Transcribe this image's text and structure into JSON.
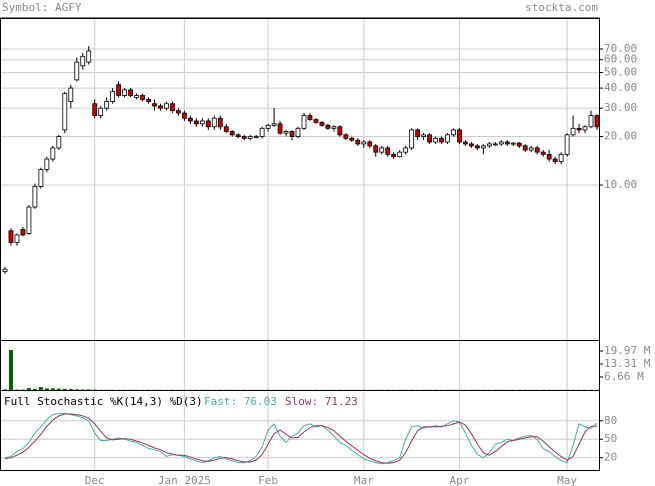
{
  "chart_data": [
    {
      "type": "candlestick",
      "title": "Symbol: AGFY",
      "source": "stockta.com",
      "categories": [
        null,
        null,
        null,
        null,
        null,
        null,
        null,
        null,
        null,
        null,
        null,
        null,
        null,
        null,
        null,
        "Dec",
        null,
        null,
        null,
        null,
        null,
        null,
        null,
        null,
        null,
        null,
        null,
        null,
        null,
        null,
        "Jan 2025",
        null,
        null,
        null,
        null,
        null,
        null,
        null,
        null,
        null,
        null,
        null,
        null,
        null,
        "Feb",
        null,
        null,
        null,
        null,
        null,
        null,
        null,
        null,
        null,
        null,
        null,
        null,
        null,
        null,
        null,
        "Mar",
        null,
        null,
        null,
        null,
        null,
        null,
        null,
        null,
        null,
        null,
        null,
        null,
        null,
        null,
        null,
        "Apr",
        null,
        null,
        null,
        null,
        null,
        null,
        null,
        null,
        null,
        null,
        null,
        null,
        null,
        null,
        null,
        null,
        null,
        "May",
        null,
        null,
        null,
        null,
        null
      ],
      "open": [
        2.9,
        5.2,
        4.4,
        5.3,
        5.0,
        7.3,
        9.8,
        12.5,
        14.5,
        17,
        22,
        33,
        45,
        55,
        58,
        32,
        27,
        30,
        33,
        42,
        36,
        39,
        35,
        36,
        34,
        32,
        31,
        30,
        32,
        29,
        28,
        26,
        25,
        24,
        25,
        23,
        26,
        23,
        21.5,
        20.5,
        20,
        19.5,
        20,
        20,
        22.5,
        23.5,
        24,
        21,
        21.5,
        20,
        22.5,
        27,
        25.5,
        24.5,
        23.5,
        22.5,
        23,
        20.5,
        19.5,
        19,
        18,
        18.5,
        17.5,
        16,
        17,
        15.5,
        15,
        16,
        17,
        22,
        20,
        20.5,
        18.5,
        19.5,
        18.5,
        20.5,
        22,
        18.5,
        18,
        17.5,
        17,
        17.5,
        18,
        18,
        18.5,
        18,
        18.2,
        17.5,
        16.5,
        17,
        16,
        15.5,
        14.5,
        14,
        15.5,
        20.5,
        22.5,
        22,
        23,
        27
      ],
      "high": [
        3.1,
        5.4,
        5.0,
        5.5,
        7.5,
        10.2,
        12.8,
        15,
        17.5,
        20.5,
        38,
        42,
        62,
        66,
        73,
        34,
        31,
        35,
        40,
        44,
        40,
        40,
        37,
        37,
        35,
        34,
        32,
        33,
        33,
        30,
        29,
        27,
        26,
        26,
        26,
        27,
        27,
        24,
        22,
        21,
        20.5,
        20.5,
        20.5,
        23,
        24,
        30,
        25,
        22,
        22,
        23,
        28,
        28,
        26,
        25,
        24,
        23.5,
        23.5,
        21,
        20,
        19.5,
        19,
        19,
        18,
        17.5,
        17.5,
        16,
        16.5,
        17.5,
        22.5,
        22.5,
        21,
        21,
        20,
        20,
        21,
        22.5,
        22.5,
        19,
        18.5,
        18,
        18,
        18.5,
        18.5,
        19,
        19,
        18.5,
        18.5,
        18,
        17.5,
        17.5,
        16.5,
        16.5,
        15,
        16,
        21,
        27,
        24,
        23.5,
        29,
        27.5
      ],
      "low": [
        2.8,
        4.2,
        4.2,
        4.8,
        4.9,
        7.1,
        9.5,
        12,
        14,
        16.5,
        21,
        30,
        44,
        52,
        56,
        26,
        26,
        29,
        32,
        35,
        35,
        35,
        34,
        33,
        32,
        29,
        29,
        29,
        28,
        27,
        25,
        24,
        23,
        23,
        22,
        22,
        22,
        21,
        20,
        19.5,
        19,
        19,
        19.5,
        19.5,
        21.5,
        23,
        20.5,
        20,
        19,
        19.5,
        22,
        25,
        24,
        23,
        22,
        21.5,
        20,
        19,
        18.5,
        17.5,
        17,
        17,
        15,
        15.5,
        15,
        14.5,
        14.8,
        15.5,
        16.5,
        19,
        19,
        18,
        18,
        18,
        18,
        20,
        18,
        17.5,
        17,
        16.5,
        15.5,
        17,
        17.5,
        17.5,
        17.5,
        17.5,
        17,
        16,
        16,
        15.5,
        15,
        14,
        13.5,
        13.5,
        15,
        20,
        21,
        21,
        22.5,
        22
      ],
      "close": [
        3.0,
        4.4,
        4.9,
        4.9,
        7.3,
        9.8,
        12.5,
        14.5,
        17,
        20,
        37,
        40,
        58,
        63,
        68,
        27,
        30,
        33,
        38,
        36,
        39,
        36,
        36,
        34,
        33,
        31,
        30,
        32,
        29,
        28,
        26,
        25,
        24,
        25,
        23,
        26,
        23,
        21.5,
        20.5,
        20,
        19.5,
        20,
        20,
        22.5,
        23.5,
        24,
        21,
        21.5,
        20,
        22.5,
        27,
        25.5,
        24.5,
        23.5,
        22.5,
        23,
        20.5,
        19.5,
        19,
        18,
        18.5,
        17.5,
        16,
        17,
        15.5,
        15,
        16,
        17,
        22,
        20,
        20.5,
        18.5,
        19.5,
        18.5,
        20.5,
        22,
        18.5,
        18,
        17.5,
        17,
        17.5,
        18,
        18,
        18.5,
        18,
        18.2,
        17.5,
        16.5,
        17,
        16,
        15.5,
        14.5,
        14,
        15.5,
        20.5,
        22.5,
        22,
        23,
        27,
        23
      ],
      "up_color": "#ffffff",
      "down_color": "#cc0000",
      "log_scale": true,
      "grid": true,
      "ylim": [
        1.09,
        109
      ],
      "yticks": [
        {
          "value": 10,
          "label": "10.00"
        },
        {
          "value": 20,
          "label": "20.00"
        },
        {
          "value": 30,
          "label": "30.00"
        },
        {
          "value": 40,
          "label": "40.00"
        },
        {
          "value": 50,
          "label": "50.00"
        },
        {
          "value": 60,
          "label": "60.00"
        },
        {
          "value": 70,
          "label": "70.00"
        }
      ]
    },
    {
      "type": "bar",
      "color": "#006600",
      "grid": false,
      "values": [
        0.3,
        20.5,
        0.2,
        0.2,
        1.0,
        0.6,
        1.5,
        0.8,
        0.9,
        0.7,
        0.6,
        0.5,
        0.4,
        0.3,
        0.3,
        0.2,
        0.1,
        0.1,
        0.1,
        0.1,
        0.1,
        0.1,
        0.1,
        0.1,
        0.1,
        0.1,
        0.1,
        0.1,
        0.1,
        0.1,
        0.1,
        0.1,
        0.1,
        0.1,
        0.1,
        0.1,
        0.1,
        0.1,
        0.1,
        0.1,
        0.1,
        0.1,
        0.1,
        0.1,
        0.1,
        0.1,
        0.1,
        0.1,
        0.1,
        0.1,
        0.1,
        0.1,
        0.1,
        0.1,
        0.1,
        0.1,
        0.1,
        0.1,
        0.1,
        0.1,
        0.1,
        0.1,
        0.1,
        0.1,
        0.1,
        0.1,
        0.1,
        0.1,
        0.1,
        0.1,
        0.1,
        0.1,
        0.1,
        0.1,
        0.1,
        0.1,
        0.1,
        0.1,
        0.1,
        0.1,
        0.1,
        0.1,
        0.1,
        0.1,
        0.1,
        0.1,
        0.1,
        0.1,
        0.1,
        0.1,
        0.1,
        0.1,
        0.1,
        0.1,
        0.1,
        0.1,
        0.1,
        0.1,
        0.1,
        0.1
      ],
      "ylim": [
        0,
        25.6
      ],
      "yticks": [
        {
          "value": 6.66,
          "label": "6.66 M"
        },
        {
          "value": 13.31,
          "label": "13.31 M"
        },
        {
          "value": 19.97,
          "label": "19.97 M"
        }
      ]
    },
    {
      "type": "line",
      "title": "Full Stochastic %K(14,3) %D(3)",
      "grid": true,
      "series": [
        {
          "name": "Fast: 76.03",
          "color": "#44aaaa",
          "values": [
            20,
            22,
            30,
            35,
            45,
            60,
            70,
            82,
            90,
            92,
            92,
            90,
            88,
            85,
            80,
            60,
            48,
            48,
            50,
            52,
            50,
            47,
            45,
            40,
            35,
            33,
            30,
            22,
            25,
            24,
            22,
            18,
            15,
            12,
            15,
            20,
            22,
            18,
            15,
            12,
            12,
            15,
            22,
            38,
            65,
            75,
            55,
            45,
            55,
            60,
            72,
            75,
            70,
            72,
            65,
            55,
            45,
            40,
            32,
            25,
            18,
            15,
            12,
            10,
            12,
            15,
            20,
            50,
            70,
            72,
            68,
            70,
            72,
            70,
            75,
            80,
            78,
            60,
            40,
            25,
            20,
            28,
            42,
            45,
            50,
            48,
            52,
            55,
            56,
            50,
            35,
            30,
            22,
            15,
            12,
            40,
            75,
            70,
            67.66,
            76.03
          ]
        },
        {
          "name": "Slow: 71.23",
          "color": "#993355",
          "values": [
            18,
            20,
            24,
            29,
            37,
            47,
            58,
            71,
            81,
            88,
            91,
            91,
            90,
            88,
            84,
            75,
            63,
            52,
            49,
            50,
            51,
            50,
            47,
            44,
            40,
            36,
            33,
            28,
            26,
            24,
            24,
            21,
            18,
            15,
            14,
            16,
            19,
            20,
            18,
            15,
            13,
            13,
            16,
            25,
            42,
            59,
            65,
            58,
            52,
            53,
            62,
            69,
            72,
            72,
            69,
            64,
            55,
            47,
            39,
            32,
            25,
            19,
            15,
            12,
            11,
            12,
            16,
            28,
            47,
            64,
            70,
            70,
            70,
            71,
            72,
            75,
            78,
            73,
            59,
            42,
            28,
            24,
            30,
            38,
            46,
            48,
            50,
            52,
            54,
            54,
            47,
            38,
            29,
            22,
            16,
            22,
            42,
            62,
            71,
            71.23
          ]
        }
      ],
      "ylim": [
        0,
        130
      ],
      "yticks": [
        20,
        50,
        80
      ]
    }
  ]
}
